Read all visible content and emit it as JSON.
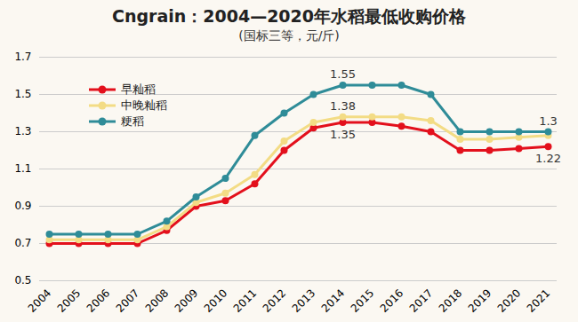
{
  "chart_data": {
    "type": "line",
    "title": "Cngrain：2004—2020年水稻最低收购价格",
    "subtitle": "(国标三等，元/斤)",
    "categories": [
      "2004",
      "2005",
      "2006",
      "2007",
      "2008",
      "2009",
      "2010",
      "2011",
      "2012",
      "2013",
      "2014",
      "2015",
      "2016",
      "2017",
      "2018",
      "2019",
      "2020",
      "2021"
    ],
    "series": [
      {
        "name": "早籼稻",
        "color": "#e3101c",
        "marker": "circle",
        "values": [
          0.7,
          0.7,
          0.7,
          0.7,
          0.77,
          0.9,
          0.93,
          1.02,
          1.2,
          1.32,
          1.35,
          1.35,
          1.33,
          1.3,
          1.2,
          1.2,
          1.21,
          1.22
        ]
      },
      {
        "name": "中晚籼稻",
        "color": "#f3dc85",
        "marker": "circle",
        "values": [
          0.72,
          0.72,
          0.72,
          0.72,
          0.79,
          0.92,
          0.97,
          1.07,
          1.25,
          1.35,
          1.38,
          1.38,
          1.38,
          1.36,
          1.26,
          1.26,
          1.27,
          1.28
        ]
      },
      {
        "name": "粳稻",
        "color": "#2f8c98",
        "marker": "circle",
        "values": [
          0.75,
          0.75,
          0.75,
          0.75,
          0.82,
          0.95,
          1.05,
          1.28,
          1.4,
          1.5,
          1.55,
          1.55,
          1.55,
          1.5,
          1.3,
          1.3,
          1.3,
          1.3
        ]
      }
    ],
    "annotations": [
      {
        "x": "2014",
        "series": "粳稻",
        "label": "1.55"
      },
      {
        "x": "2014",
        "series": "中晚籼稻",
        "label": "1.38"
      },
      {
        "x": "2014",
        "series": "早籼稻",
        "label": "1.35"
      },
      {
        "x": "2021",
        "series": "粳稻",
        "label": "1.3"
      },
      {
        "x": "2021",
        "series": "早籼稻",
        "label": "1.22"
      }
    ],
    "ylim": [
      0.5,
      1.7
    ],
    "yticks": [
      0.5,
      0.7,
      0.9,
      1.1,
      1.3,
      1.5,
      1.7
    ],
    "grid": true,
    "legend": "top-left"
  }
}
